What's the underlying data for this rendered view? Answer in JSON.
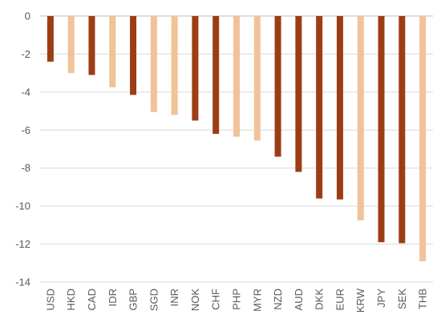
{
  "chart_data": {
    "type": "bar",
    "title": "",
    "xlabel": "",
    "ylabel": "",
    "ylim": [
      -14,
      0
    ],
    "y_ticks": [
      0,
      -2,
      -4,
      -6,
      -8,
      -10,
      -12,
      -14
    ],
    "grid": true,
    "legend": "none",
    "categories": [
      "USD",
      "HKD",
      "CAD",
      "IDR",
      "GBP",
      "SGD",
      "INR",
      "NOK",
      "CHF",
      "PHP",
      "MYR",
      "NZD",
      "AUD",
      "DKK",
      "EUR",
      "KRW",
      "JPY",
      "SEK",
      "THB"
    ],
    "values": [
      -2.4,
      -3.0,
      -3.1,
      -3.75,
      -4.15,
      -5.05,
      -5.2,
      -5.5,
      -6.2,
      -6.35,
      -6.55,
      -7.4,
      -8.2,
      -9.6,
      -9.65,
      -10.75,
      -11.9,
      -11.95,
      -12.9
    ],
    "bar_colors": [
      "#9c3d13",
      "#f0c398",
      "#9c3d13",
      "#f0c398",
      "#9c3d13",
      "#f0c398",
      "#f0c398",
      "#9c3d13",
      "#9c3d13",
      "#f0c398",
      "#f0c398",
      "#9c3d13",
      "#9c3d13",
      "#9c3d13",
      "#9c3d13",
      "#f0c398",
      "#9c3d13",
      "#9c3d13",
      "#f0c398"
    ]
  }
}
